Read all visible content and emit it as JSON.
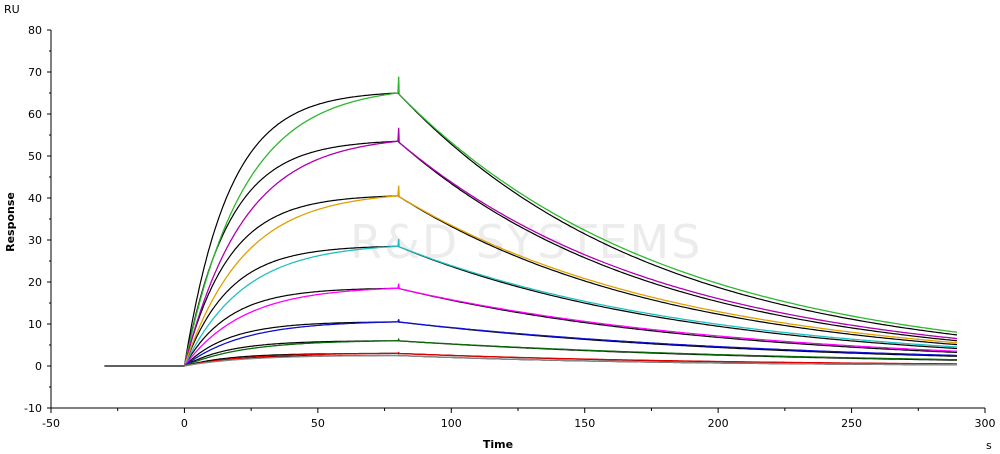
{
  "chart_data": {
    "type": "line",
    "title": "",
    "xlabel": "Time",
    "ylabel": "Response",
    "x_unit": "s",
    "y_unit": "RU",
    "xlim": [
      -50,
      300
    ],
    "ylim": [
      -10,
      80
    ],
    "x_ticks": [
      -50,
      0,
      50,
      100,
      150,
      200,
      250,
      300
    ],
    "y_ticks": [
      -10,
      0,
      10,
      20,
      30,
      40,
      50,
      60,
      70,
      80
    ],
    "watermark": "R&D SYSTEMS",
    "baseline": {
      "x_start": -30,
      "x_end": 0,
      "value": 0
    },
    "injection_start": 0,
    "injection_end": 80,
    "x_end": 290,
    "series": [
      {
        "color": "#2db82d",
        "peak": 65.0,
        "end": 8.0
      },
      {
        "color": "#b000b0",
        "peak": 53.5,
        "end": 6.5
      },
      {
        "color": "#e0a000",
        "peak": 40.5,
        "end": 5.5
      },
      {
        "color": "#20c0c0",
        "peak": 28.5,
        "end": 4.5
      },
      {
        "color": "#ff00ff",
        "peak": 18.5,
        "end": 3.5
      },
      {
        "color": "#1010d0",
        "peak": 10.5,
        "end": 2.5
      },
      {
        "color": "#0a6a0a",
        "peak": 6.0,
        "end": 1.5
      },
      {
        "color": "#e00000",
        "peak": 3.0,
        "end": 0.5
      },
      {
        "color": "#888888",
        "peak": 2.5,
        "end": 0.3
      }
    ]
  }
}
